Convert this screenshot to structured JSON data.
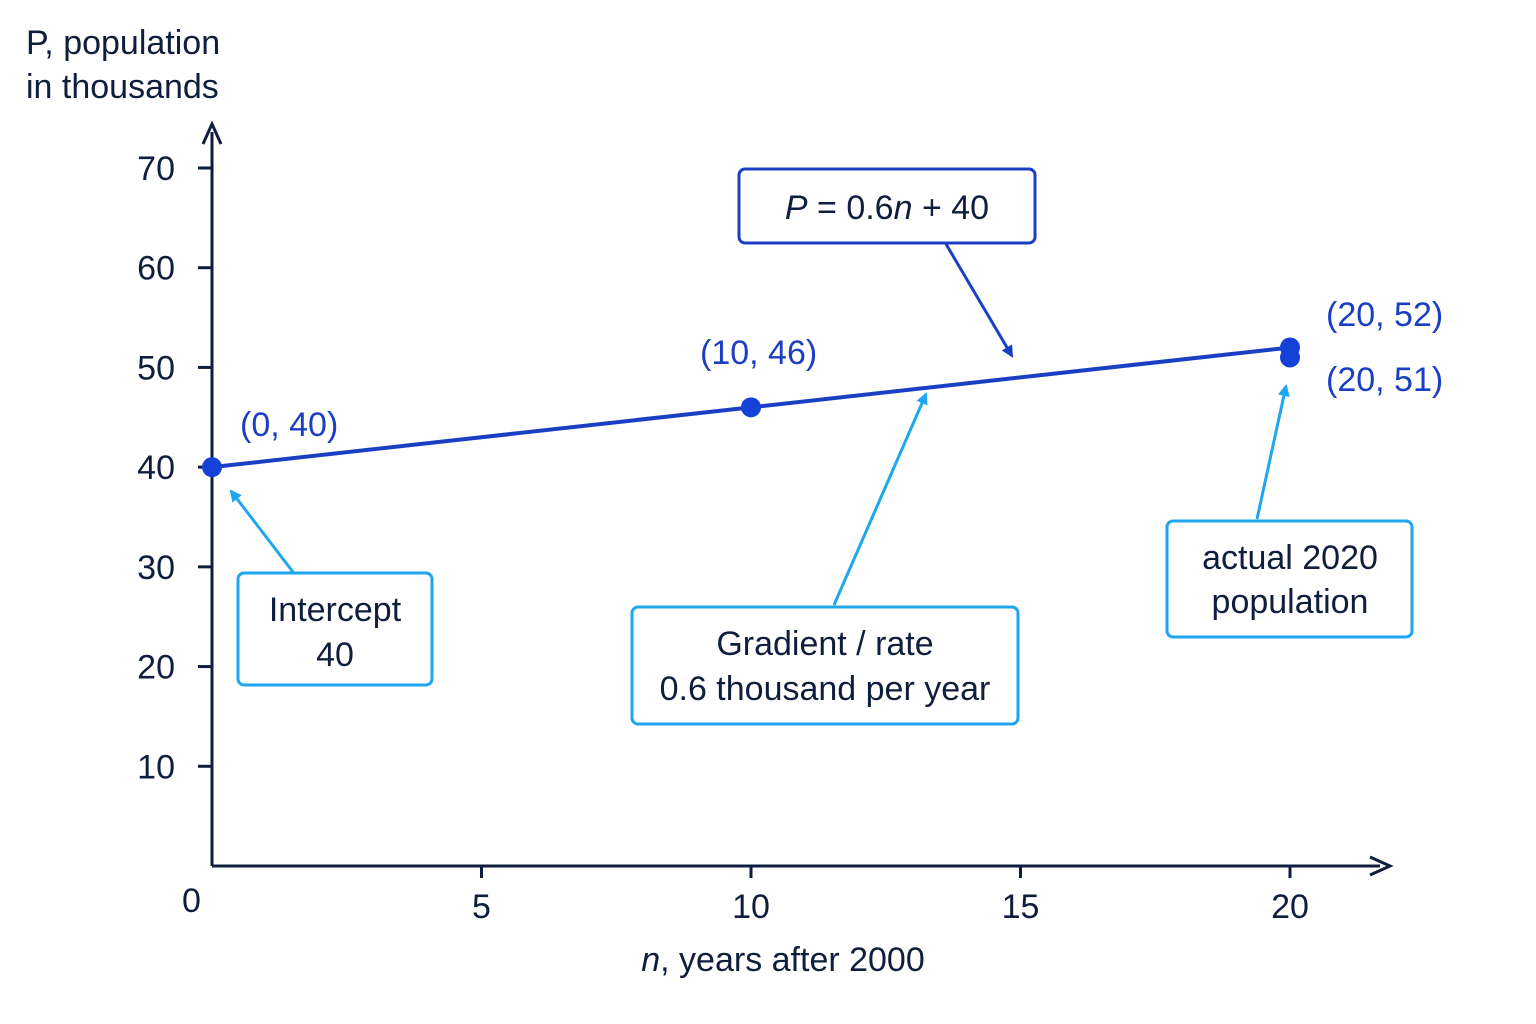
{
  "chart_data": {
    "type": "line",
    "ylabel": [
      "P, population",
      "in thousands"
    ],
    "xlabel": {
      "var": "n",
      "rest": ", years after 2000"
    },
    "xlim": [
      0,
      20
    ],
    "ylim": [
      0,
      70
    ],
    "x_ticks": [
      5,
      10,
      15,
      20
    ],
    "y_ticks": [
      10,
      20,
      30,
      40,
      50,
      60,
      70
    ],
    "origin_label": "0",
    "line": {
      "x": [
        0,
        20
      ],
      "y": [
        40,
        52
      ]
    },
    "points": [
      {
        "x": 0,
        "y": 40,
        "label": "(0, 40)"
      },
      {
        "x": 10,
        "y": 46,
        "label": "(10, 46)"
      },
      {
        "x": 20,
        "y": 52,
        "label": "(20, 52)"
      },
      {
        "x": 20,
        "y": 51,
        "label": "(20, 51)"
      }
    ],
    "equation": {
      "lhs": "P",
      "mid": " = 0.6",
      "var": "n",
      "rhs": " + 40"
    },
    "annotations": [
      {
        "lines": [
          "Intercept",
          "40"
        ]
      },
      {
        "lines": [
          "Gradient / rate",
          "0.6 thousand per year"
        ]
      },
      {
        "lines": [
          "actual 2020",
          "population"
        ]
      }
    ]
  },
  "colors": {
    "axis": "#0f1e3d",
    "line": "#1a3fc4",
    "point": "#1442d9",
    "annotation": "#1ea7ee"
  }
}
